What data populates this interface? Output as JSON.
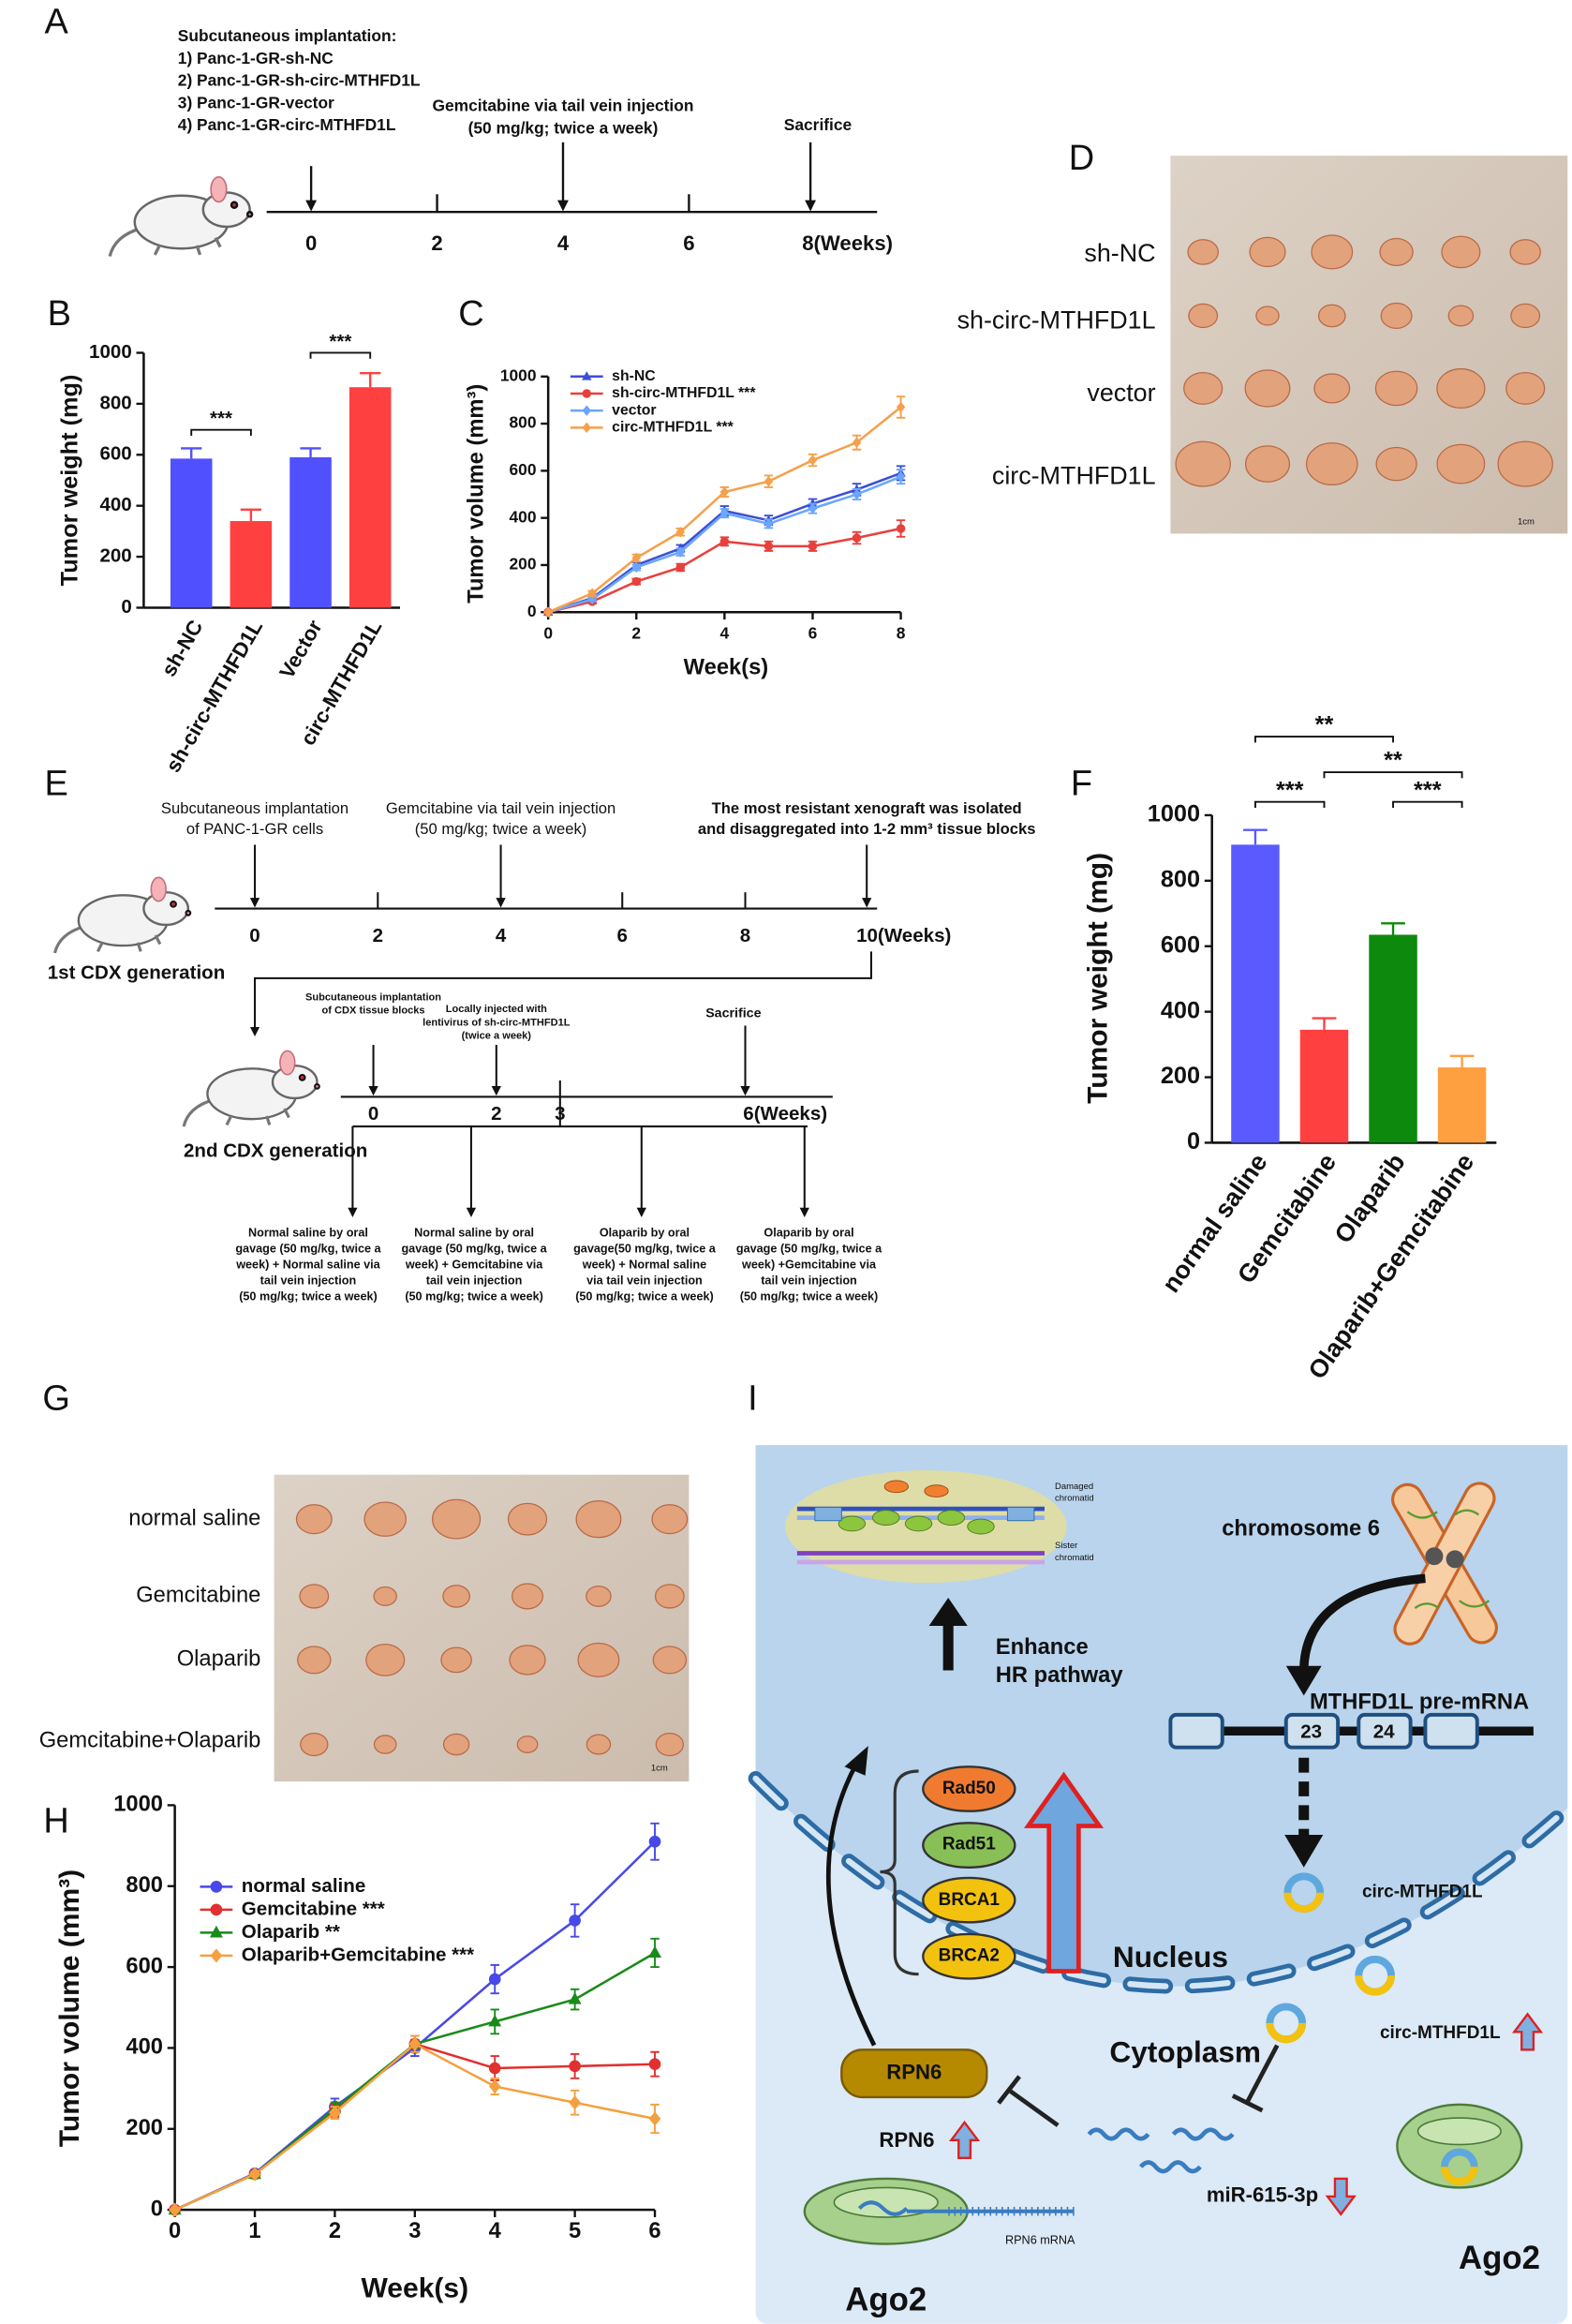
{
  "panel_a": {
    "label": "A",
    "implantation": [
      "Subcutaneous implantation:",
      "1) Panc-1-GR-sh-NC",
      "2) Panc-1-GR-sh-circ-MTHFD1L",
      "3) Panc-1-GR-vector",
      "4) Panc-1-GR-circ-MTHFD1L"
    ],
    "gemcitabine": [
      "Gemcitabine via tail vein injection",
      "(50 mg/kg; twice a week)"
    ],
    "sacrifice": "Sacrifice",
    "timeline": [
      "0",
      "2",
      "4",
      "6",
      "8(Weeks)"
    ]
  },
  "chart_data": [
    {
      "type": "bar",
      "panel_label": "B",
      "y_label": "Tumor weight (mg)",
      "categories": [
        "sh-NC",
        "sh-circ-MTHFD1L",
        "Vector",
        "circ-MTHFD1L"
      ],
      "values": [
        585,
        340,
        590,
        865
      ],
      "errors": [
        40,
        45,
        35,
        55
      ],
      "colors": [
        "#5050ff",
        "#ff4040",
        "#5050ff",
        "#ff4040"
      ],
      "ylim": [
        0,
        1000
      ],
      "yticks": [
        0,
        200,
        400,
        600,
        800,
        1000
      ],
      "significance": [
        {
          "label": "***",
          "between": [
            0,
            1
          ]
        },
        {
          "label": "***",
          "between": [
            2,
            3
          ]
        }
      ]
    },
    {
      "type": "line",
      "panel_label": "C",
      "x_label": "Week(s)",
      "y_label": "Tumor volume (mm³)",
      "x": [
        0,
        1,
        2,
        3,
        4,
        5,
        6,
        7,
        8
      ],
      "xlim": [
        0,
        8
      ],
      "xticks": [
        0,
        2,
        4,
        6,
        8
      ],
      "ylim": [
        0,
        1000
      ],
      "yticks": [
        0,
        200,
        400,
        600,
        800,
        1000
      ],
      "series": [
        {
          "name": "sh-NC",
          "color": "#3b4fd8",
          "marker": "triangle",
          "values": [
            0,
            60,
            200,
            270,
            430,
            390,
            460,
            520,
            590
          ],
          "errors": [
            0,
            10,
            12,
            15,
            20,
            20,
            20,
            25,
            30
          ]
        },
        {
          "name": "sh-circ-MTHFD1L ***",
          "color": "#e8403c",
          "marker": "circle",
          "values": [
            0,
            45,
            130,
            190,
            300,
            280,
            280,
            315,
            355
          ],
          "errors": [
            0,
            8,
            12,
            15,
            18,
            20,
            20,
            25,
            35
          ]
        },
        {
          "name": "vector",
          "color": "#6aa6ff",
          "marker": "diamond",
          "values": [
            0,
            55,
            190,
            255,
            420,
            375,
            440,
            500,
            575
          ],
          "errors": [
            0,
            8,
            12,
            15,
            18,
            18,
            20,
            22,
            30
          ]
        },
        {
          "name": "circ-MTHFD1L ***",
          "color": "#f5a04a",
          "marker": "diamond",
          "values": [
            0,
            80,
            230,
            340,
            510,
            555,
            645,
            720,
            870
          ],
          "errors": [
            0,
            10,
            15,
            15,
            20,
            25,
            25,
            30,
            45
          ]
        }
      ]
    },
    {
      "type": "bar",
      "panel_label": "F",
      "y_label": "Tumor weight (mg)",
      "categories": [
        "normal saline",
        "Gemcitabine",
        "Olaparib",
        "Olaparib+Gemcitabine"
      ],
      "values": [
        910,
        345,
        635,
        230
      ],
      "errors": [
        45,
        35,
        35,
        35
      ],
      "colors": [
        "#5a5aff",
        "#ff4040",
        "#0d8a0d",
        "#ffa040"
      ],
      "ylim": [
        0,
        1000
      ],
      "yticks": [
        0,
        200,
        400,
        600,
        800,
        1000
      ],
      "significance": [
        {
          "label": "**",
          "between": [
            0,
            2
          ]
        },
        {
          "label": "***",
          "between": [
            0,
            1
          ]
        },
        {
          "label": "**",
          "between": [
            1,
            3
          ]
        },
        {
          "label": "***",
          "between": [
            2,
            3
          ]
        }
      ]
    },
    {
      "type": "line",
      "panel_label": "H",
      "x_label": "Week(s)",
      "y_label": "Tumor volume (mm³)",
      "x": [
        0,
        1,
        2,
        3,
        4,
        5,
        6
      ],
      "xlim": [
        0,
        6
      ],
      "xticks": [
        0,
        1,
        2,
        3,
        4,
        5,
        6
      ],
      "ylim": [
        0,
        1000
      ],
      "yticks": [
        0,
        200,
        400,
        600,
        800,
        1000
      ],
      "series": [
        {
          "name": "normal saline",
          "color": "#4848e8",
          "marker": "circle",
          "values": [
            0,
            90,
            255,
            400,
            570,
            715,
            910
          ],
          "errors": [
            0,
            8,
            20,
            20,
            35,
            40,
            45
          ]
        },
        {
          "name": "Gemcitabine ***",
          "color": "#e03030",
          "marker": "circle",
          "values": [
            0,
            88,
            245,
            410,
            350,
            355,
            360
          ],
          "errors": [
            0,
            5,
            15,
            20,
            30,
            30,
            30
          ]
        },
        {
          "name": "Olaparib **",
          "color": "#1a8a1a",
          "marker": "triangle",
          "values": [
            0,
            88,
            250,
            410,
            465,
            520,
            635
          ],
          "errors": [
            0,
            5,
            15,
            20,
            30,
            25,
            35
          ]
        },
        {
          "name": "Olaparib+Gemcitabine ***",
          "color": "#f5a040",
          "marker": "diamond",
          "values": [
            0,
            88,
            240,
            410,
            305,
            265,
            225
          ],
          "errors": [
            0,
            5,
            15,
            20,
            20,
            30,
            35
          ]
        }
      ]
    }
  ],
  "panel_d": {
    "label": "D",
    "rows": [
      "sh-NC",
      "sh-circ-MTHFD1L",
      "vector",
      "circ-MTHFD1L"
    ],
    "scale": "1cm"
  },
  "panel_e": {
    "label": "E",
    "implantation": [
      "Subcutaneous implantation",
      "of PANC-1-GR cells"
    ],
    "gemcitabine": [
      "Gemcitabine via tail vein injection",
      "(50 mg/kg; twice a week)"
    ],
    "isolation": [
      "The most resistant xenograft was isolated",
      "and disaggregated into 1-2 mm³ tissue blocks"
    ],
    "timeline1": [
      "0",
      "2",
      "4",
      "6",
      "8",
      "10(Weeks)"
    ],
    "generation1": "1st CDX generation",
    "cdx_implantation": [
      "Subcutaneous implantation",
      "of CDX tissue blocks"
    ],
    "lentivirus": [
      "Locally injected with",
      "lentivirus of sh-circ-MTHFD1L",
      "(twice a week)"
    ],
    "sacrifice": "Sacrifice",
    "timeline2": [
      "0",
      "2",
      "3",
      "6(Weeks)"
    ],
    "generation2": "2nd CDX generation",
    "treatments": [
      [
        "Normal saline by oral",
        "gavage (50 mg/kg, twice a",
        "week) + Normal saline via",
        "tail vein injection",
        "(50 mg/kg; twice a week)"
      ],
      [
        "Normal saline by oral",
        "gavage (50 mg/kg, twice a",
        "week) + Gemcitabine via",
        "tail vein injection",
        "(50 mg/kg; twice a week)"
      ],
      [
        "Olaparib by oral",
        "gavage(50 mg/kg, twice a",
        "week) + Normal saline",
        "via tail vein injection",
        "(50 mg/kg; twice a week)"
      ],
      [
        "Olaparib by oral",
        "gavage (50 mg/kg, twice a",
        "week) +Gemcitabine via",
        "tail vein injection",
        "(50 mg/kg; twice a week)"
      ]
    ]
  },
  "panel_g": {
    "label": "G",
    "rows": [
      "normal saline",
      "Gemcitabine",
      "Olaparib",
      "Gemcitabine+Olaparib"
    ],
    "scale": "1cm"
  },
  "panel_i": {
    "label": "I",
    "chromatid": [
      "Damaged",
      "chromatid",
      "Sister",
      "chromatid"
    ],
    "enhance": [
      "Enhance",
      "HR pathway"
    ],
    "chromosome": "chromosome 6",
    "pre_mrna": "MTHFD1L pre-mRNA",
    "exons": [
      "23",
      "24"
    ],
    "circ": [
      "circ-MTHFD1L",
      "circ-MTHFD1L"
    ],
    "proteins": [
      "Rad50",
      "Rad51",
      "BRCA1",
      "BRCA2"
    ],
    "nucleus": "Nucleus",
    "cytoplasm": "Cytoplasm",
    "rpn6": [
      "RPN6",
      "RPN6"
    ],
    "mirna": "miR-615-3p",
    "mrna": "RPN6 mRNA",
    "ago2": [
      "Ago2",
      "Ago2"
    ]
  }
}
